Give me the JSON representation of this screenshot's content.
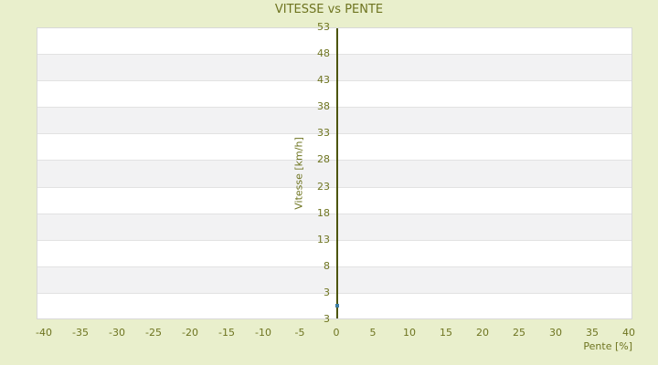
{
  "chart_data": {
    "type": "scatter",
    "title": "VITESSE vs PENTE",
    "xlabel": "Pente [%]",
    "ylabel": "Vitesse [km/h]",
    "x_ticks": [
      -40,
      -35,
      -30,
      -25,
      -20,
      -15,
      -10,
      -5,
      0,
      5,
      10,
      15,
      20,
      25,
      30,
      35,
      40
    ],
    "y_tick_labels": [
      "53",
      "48",
      "43",
      "38",
      "33",
      "28",
      "23",
      "18",
      "13",
      "8",
      "3",
      "3"
    ],
    "xlim": [
      -41,
      40.5
    ],
    "ylim": [
      -2,
      53
    ],
    "axis_x_value": 0,
    "series": [
      {
        "name": "vitesse-vs-pente",
        "points": [
          {
            "x": 0,
            "y": 0.8
          }
        ]
      }
    ],
    "legend": "none",
    "grid": "horizontal-alternating-bands",
    "colors": {
      "background": "#e9efcc",
      "text": "#6e7420",
      "axis_line": "#4c5408",
      "marker": "#3f7da2",
      "band_light": "#ffffff",
      "band_dark": "#f2f2f3",
      "grid_line": "#e2e2e2",
      "plot_border": "#d8d8d8"
    }
  }
}
